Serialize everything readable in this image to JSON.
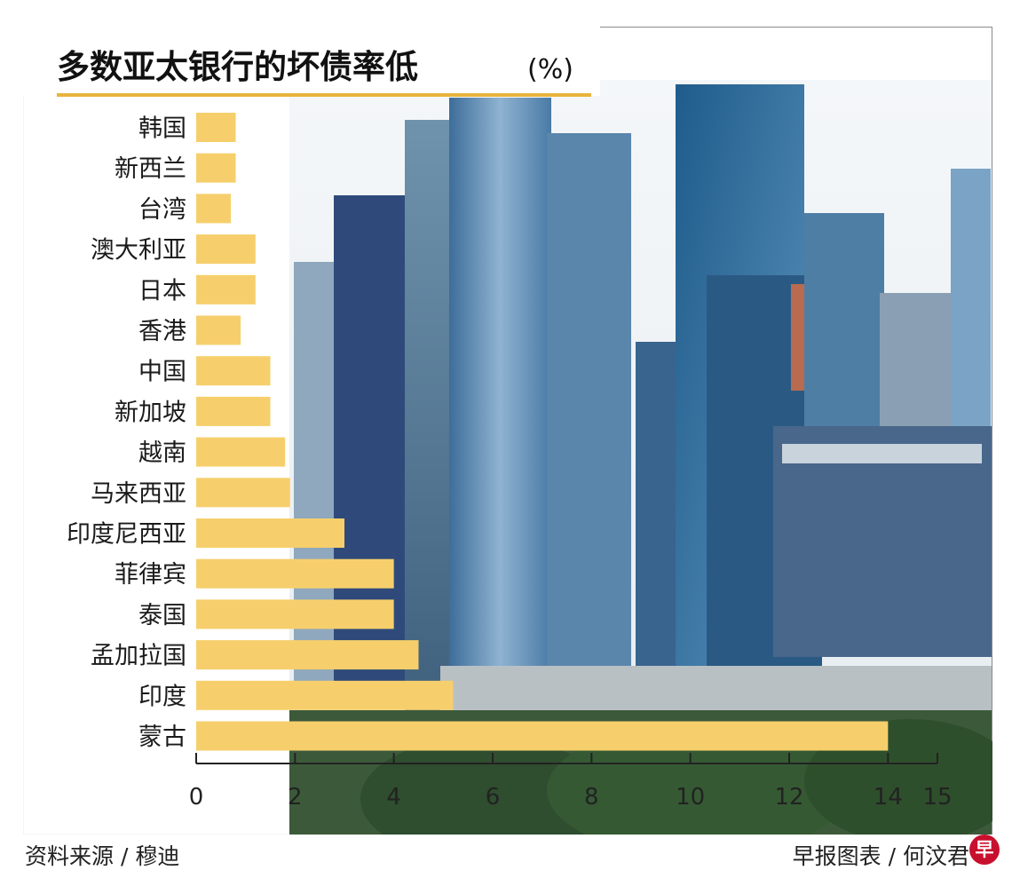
{
  "chart_data": {
    "type": "bar",
    "orientation": "horizontal",
    "title": "多数亚太银行的坏债率低",
    "unit": "(%)",
    "categories": [
      "韩国",
      "新西兰",
      "台湾",
      "澳大利亚",
      "日本",
      "香港",
      "中国",
      "新加坡",
      "越南",
      "马来西亚",
      "印度尼西亚",
      "菲律宾",
      "泰国",
      "孟加拉国",
      "印度",
      "蒙古"
    ],
    "values": [
      0.8,
      0.8,
      0.7,
      1.2,
      1.2,
      0.9,
      1.5,
      1.5,
      1.8,
      1.9,
      3.0,
      4.0,
      4.0,
      4.5,
      5.2,
      14.0
    ],
    "xlim": [
      0,
      15
    ],
    "xticks": [
      0,
      2,
      4,
      6,
      8,
      10,
      12,
      14,
      15
    ],
    "bar_color": "#f6cf6c",
    "grid": false,
    "background": "photo of city skyline"
  },
  "footer": {
    "source": "资料来源 / 穆迪",
    "credit": "早报图表 / 何汶君",
    "logo": "早"
  }
}
